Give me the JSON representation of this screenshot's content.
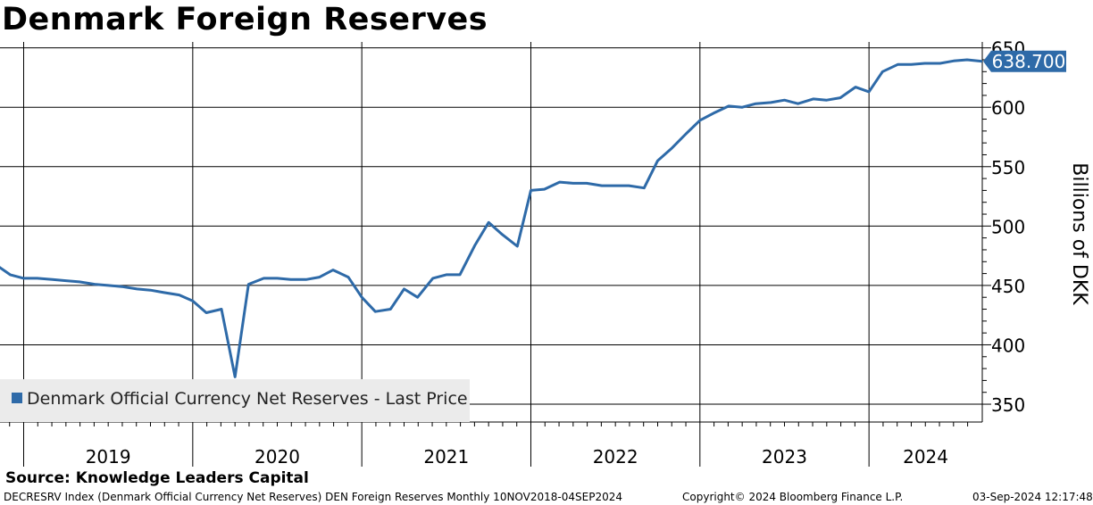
{
  "title": "Denmark Foreign Reserves",
  "source": "Source: Knowledge Leaders Capital",
  "footer": {
    "index_info": "DECRESRV Index (Denmark Official Currency Net Reserves) DEN Foreign Reserves  Monthly 10NOV2018-04SEP2024",
    "copyright": "Copyright© 2024 Bloomberg Finance L.P.",
    "timestamp": "03-Sep-2024 12:17:48"
  },
  "legend": {
    "label": "Denmark Official Currency Net Reserves - Last Price"
  },
  "last_value_label": "638.700",
  "colors": {
    "line": "#2e6aa8",
    "badge": "#2e6aa8",
    "legend_bg": "#ebebeb"
  },
  "chart_data": {
    "type": "line",
    "title": "Denmark Foreign Reserves",
    "ylabel": "Billions of DKK",
    "xlabel": "",
    "ylim": [
      335,
      655
    ],
    "yticks": [
      350,
      400,
      450,
      500,
      550,
      600,
      650
    ],
    "year_labels": [
      "2019",
      "2020",
      "2021",
      "2022",
      "2023",
      "2024"
    ],
    "x_start": 2018.86,
    "x_end": 2024.67,
    "series": [
      {
        "name": "Denmark Official Currency Net Reserves - Last Price",
        "points": [
          [
            2018.83,
            468
          ],
          [
            2018.92,
            459
          ],
          [
            2019.0,
            456
          ],
          [
            2019.08,
            456
          ],
          [
            2019.17,
            455
          ],
          [
            2019.25,
            454
          ],
          [
            2019.33,
            453
          ],
          [
            2019.42,
            451
          ],
          [
            2019.5,
            450
          ],
          [
            2019.58,
            449
          ],
          [
            2019.67,
            447
          ],
          [
            2019.75,
            446
          ],
          [
            2019.83,
            444
          ],
          [
            2019.92,
            442
          ],
          [
            2020.0,
            437
          ],
          [
            2020.08,
            427
          ],
          [
            2020.17,
            430
          ],
          [
            2020.25,
            373
          ],
          [
            2020.33,
            451
          ],
          [
            2020.42,
            456
          ],
          [
            2020.5,
            456
          ],
          [
            2020.58,
            455
          ],
          [
            2020.67,
            455
          ],
          [
            2020.75,
            457
          ],
          [
            2020.83,
            463
          ],
          [
            2020.92,
            457
          ],
          [
            2021.0,
            440
          ],
          [
            2021.08,
            428
          ],
          [
            2021.17,
            430
          ],
          [
            2021.25,
            447
          ],
          [
            2021.33,
            440
          ],
          [
            2021.42,
            456
          ],
          [
            2021.5,
            459
          ],
          [
            2021.58,
            459
          ],
          [
            2021.67,
            484
          ],
          [
            2021.75,
            503
          ],
          [
            2021.83,
            493
          ],
          [
            2021.92,
            483
          ],
          [
            2022.0,
            530
          ],
          [
            2022.08,
            531
          ],
          [
            2022.17,
            537
          ],
          [
            2022.25,
            536
          ],
          [
            2022.33,
            536
          ],
          [
            2022.42,
            534
          ],
          [
            2022.5,
            534
          ],
          [
            2022.58,
            534
          ],
          [
            2022.67,
            532
          ],
          [
            2022.75,
            555
          ],
          [
            2022.83,
            565
          ],
          [
            2022.92,
            578
          ],
          [
            2023.0,
            589
          ],
          [
            2023.08,
            595
          ],
          [
            2023.17,
            601
          ],
          [
            2023.25,
            600
          ],
          [
            2023.33,
            603
          ],
          [
            2023.42,
            604
          ],
          [
            2023.5,
            606
          ],
          [
            2023.58,
            603
          ],
          [
            2023.67,
            607
          ],
          [
            2023.75,
            606
          ],
          [
            2023.83,
            608
          ],
          [
            2023.92,
            617
          ],
          [
            2024.0,
            613
          ],
          [
            2024.08,
            630
          ],
          [
            2024.17,
            636
          ],
          [
            2024.25,
            636
          ],
          [
            2024.33,
            637
          ],
          [
            2024.42,
            637
          ],
          [
            2024.5,
            639
          ],
          [
            2024.58,
            640
          ],
          [
            2024.67,
            638.7
          ]
        ]
      }
    ]
  }
}
